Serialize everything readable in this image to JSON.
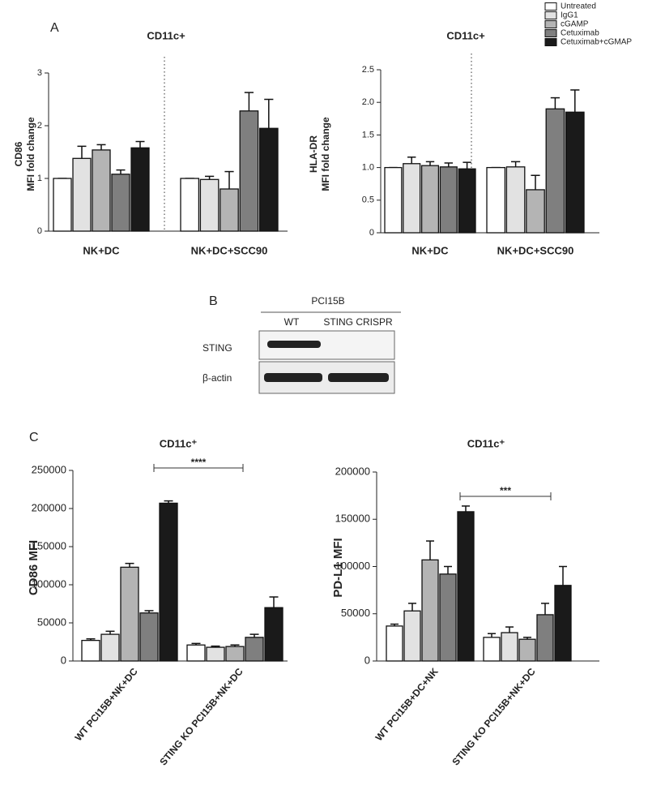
{
  "panels": {
    "a": "A",
    "b": "B",
    "c": "C"
  },
  "blot": {
    "header": "PCI15B",
    "lanes": [
      "WT",
      "STING CRISPR"
    ],
    "rows": [
      "STING",
      "β-actin"
    ]
  },
  "chart_data": [
    {
      "type": "bar",
      "title": "CD11c+",
      "ylabel": [
        "CD86",
        "MFI fold change"
      ],
      "categories": [
        "NK+DC",
        "NK+DC+SCC90"
      ],
      "ylim": [
        0,
        3
      ],
      "yticks": [
        0,
        1,
        2,
        3
      ],
      "series": [
        {
          "name": "Untreated",
          "color": "#ffffff",
          "values": [
            1.0,
            1.0
          ],
          "errors": [
            0,
            0
          ]
        },
        {
          "name": "IgG1",
          "color": "#e2e2e2",
          "values": [
            1.38,
            0.98
          ],
          "errors": [
            0.23,
            0.06
          ]
        },
        {
          "name": "cGAMP",
          "color": "#b4b4b4",
          "values": [
            1.54,
            0.8
          ],
          "errors": [
            0.1,
            0.33
          ]
        },
        {
          "name": "Cetuximab",
          "color": "#7f7f7f",
          "values": [
            1.08,
            2.28
          ],
          "errors": [
            0.08,
            0.35
          ]
        },
        {
          "name": "Cetuximab+cGMAP",
          "color": "#1a1a1a",
          "values": [
            1.58,
            1.95
          ],
          "errors": [
            0.12,
            0.55
          ]
        }
      ]
    },
    {
      "type": "bar",
      "title": "CD11c+",
      "ylabel": [
        "HLA-DR",
        "MFI fold change"
      ],
      "categories": [
        "NK+DC",
        "NK+DC+SCC90"
      ],
      "ylim": [
        0,
        2.5
      ],
      "yticks": [
        0,
        0.5,
        {
          "value": 1,
          "label": "1.0"
        },
        1.5,
        {
          "value": 2,
          "label": "2.0"
        },
        2.5
      ],
      "series": [
        {
          "color": "#ffffff",
          "values": [
            1.0,
            1.0
          ],
          "errors": [
            0,
            0
          ]
        },
        {
          "color": "#e2e2e2",
          "values": [
            1.06,
            1.01
          ],
          "errors": [
            0.1,
            0.08
          ]
        },
        {
          "color": "#b4b4b4",
          "values": [
            1.03,
            0.66
          ],
          "errors": [
            0.06,
            0.22
          ]
        },
        {
          "color": "#7f7f7f",
          "values": [
            1.01,
            1.9
          ],
          "errors": [
            0.06,
            0.17
          ]
        },
        {
          "color": "#1a1a1a",
          "values": [
            0.98,
            1.85
          ],
          "errors": [
            0.1,
            0.34
          ]
        }
      ]
    },
    {
      "type": "bar",
      "title": "CD11c⁺",
      "ylabel": [
        "CD86 MFI"
      ],
      "categories": [
        "WT PCI15B+NK+DC",
        "STING KO PCI15B+NK+DC"
      ],
      "ylim": [
        0,
        250000
      ],
      "yticks": [
        0,
        50000,
        100000,
        150000,
        200000,
        250000
      ],
      "significance": "****",
      "series": [
        {
          "color": "#ffffff",
          "values": [
            27000,
            21000
          ],
          "errors": [
            2000,
            2000
          ]
        },
        {
          "color": "#e2e2e2",
          "values": [
            35000,
            18000
          ],
          "errors": [
            4000,
            1500
          ]
        },
        {
          "color": "#b4b4b4",
          "values": [
            123000,
            19000
          ],
          "errors": [
            5000,
            2000
          ]
        },
        {
          "color": "#7f7f7f",
          "values": [
            63000,
            31000
          ],
          "errors": [
            3000,
            4000
          ]
        },
        {
          "color": "#1a1a1a",
          "values": [
            207000,
            70000
          ],
          "errors": [
            3000,
            14000
          ]
        }
      ]
    },
    {
      "type": "bar",
      "title": "CD11c⁺",
      "ylabel": [
        "PD-L1 MFI"
      ],
      "categories": [
        "WT PCI15B+DC+NK",
        "STING KO PCI15B+NK+DC"
      ],
      "ylim": [
        0,
        200000
      ],
      "yticks": [
        0,
        50000,
        100000,
        150000,
        200000
      ],
      "significance": "***",
      "series": [
        {
          "color": "#ffffff",
          "values": [
            37000,
            25000
          ],
          "errors": [
            2000,
            4000
          ]
        },
        {
          "color": "#e2e2e2",
          "values": [
            53000,
            30000
          ],
          "errors": [
            8000,
            6000
          ]
        },
        {
          "color": "#b4b4b4",
          "values": [
            107000,
            23000
          ],
          "errors": [
            20000,
            2000
          ]
        },
        {
          "color": "#7f7f7f",
          "values": [
            92000,
            49000
          ],
          "errors": [
            8000,
            12000
          ]
        },
        {
          "color": "#1a1a1a",
          "values": [
            158000,
            80000
          ],
          "errors": [
            6000,
            20000
          ]
        }
      ]
    }
  ]
}
